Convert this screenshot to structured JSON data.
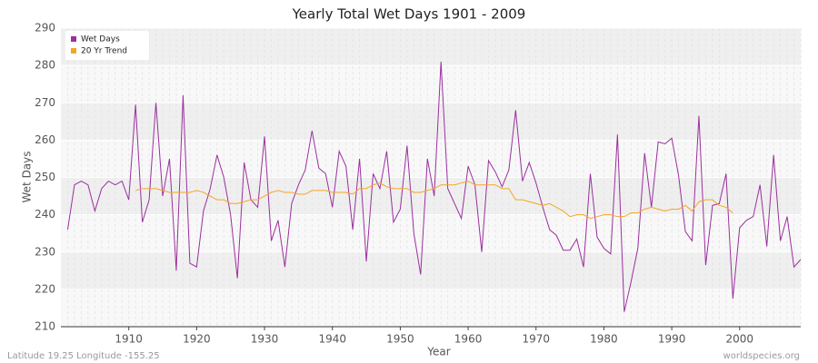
{
  "chart_data": {
    "type": "line",
    "title": "Yearly Total Wet Days 1901 - 2009",
    "x_label": "Year",
    "y_label": "Wet Days",
    "footer_left": "Latitude 19.25 Longitude -155.25",
    "footer_right": "worldspecies.org",
    "x": [
      1901,
      1902,
      1903,
      1904,
      1905,
      1906,
      1907,
      1908,
      1909,
      1910,
      1911,
      1912,
      1913,
      1914,
      1915,
      1916,
      1917,
      1918,
      1919,
      1920,
      1921,
      1922,
      1923,
      1924,
      1925,
      1926,
      1927,
      1928,
      1929,
      1930,
      1931,
      1932,
      1933,
      1934,
      1935,
      1936,
      1937,
      1938,
      1939,
      1940,
      1941,
      1942,
      1943,
      1944,
      1945,
      1946,
      1947,
      1948,
      1949,
      1950,
      1951,
      1952,
      1953,
      1954,
      1955,
      1956,
      1957,
      1958,
      1959,
      1960,
      1961,
      1962,
      1963,
      1964,
      1965,
      1966,
      1967,
      1968,
      1969,
      1970,
      1971,
      1972,
      1973,
      1974,
      1975,
      1976,
      1977,
      1978,
      1979,
      1980,
      1981,
      1982,
      1983,
      1984,
      1985,
      1986,
      1987,
      1988,
      1989,
      1990,
      1991,
      1992,
      1993,
      1994,
      1995,
      1996,
      1997,
      1998,
      1999,
      2000,
      2001,
      2002,
      2003,
      2004,
      2005,
      2006,
      2007,
      2008,
      2009
    ],
    "series": [
      {
        "name": "Wet Days",
        "color": "#9b2f9e",
        "values": [
          236,
          248,
          249,
          248,
          241,
          247,
          249,
          248,
          249,
          244,
          269.5,
          238,
          244,
          270,
          245,
          255,
          225,
          272,
          227,
          226,
          241,
          247,
          256,
          250,
          240,
          223,
          254,
          244,
          242,
          261,
          233,
          238.5,
          226,
          243,
          248,
          252,
          262.5,
          252.5,
          251,
          242,
          257,
          253,
          236,
          255,
          227.5,
          251,
          247,
          257,
          238,
          241.5,
          258.5,
          235,
          224,
          255,
          245,
          281,
          247,
          243,
          239,
          253,
          248,
          230,
          254.5,
          251.5,
          247.5,
          252,
          268,
          249,
          254,
          248.5,
          242,
          236,
          234.5,
          230.5,
          230.5,
          233.5,
          226,
          251,
          234,
          231,
          229.5,
          261.5,
          214,
          222,
          231,
          256.5,
          242,
          259.5,
          259,
          260.5,
          250.5,
          235.5,
          233,
          266.5,
          226.5,
          242.5,
          243,
          251,
          217.5,
          236.5,
          238.5,
          239.5,
          248,
          231.5,
          256,
          233,
          239.5,
          226,
          228
        ]
      },
      {
        "name": "20 Yr Trend",
        "color": "#f5a623",
        "values": [
          null,
          null,
          null,
          null,
          null,
          null,
          null,
          null,
          null,
          null,
          246.5,
          247,
          247,
          247,
          246.5,
          246,
          246,
          246,
          246,
          246.5,
          246,
          245,
          244,
          244,
          243,
          243,
          243.5,
          244,
          244,
          245,
          246,
          246.5,
          246,
          246,
          245.5,
          245.5,
          246.5,
          246.5,
          246.5,
          246,
          246,
          246,
          245.5,
          247,
          247,
          248,
          248.5,
          247.5,
          247,
          247,
          247,
          246,
          246,
          246.5,
          247,
          248,
          248,
          248,
          248.5,
          249,
          248,
          248,
          248,
          248,
          247,
          247,
          244,
          244,
          243.5,
          243,
          242.5,
          243,
          242,
          241,
          239.5,
          240,
          240,
          239,
          239.5,
          240,
          240,
          239.5,
          239.5,
          240.5,
          240.5,
          241.5,
          242,
          241.5,
          241,
          241.5,
          241.5,
          242.5,
          241,
          243.5,
          244,
          244,
          242.5,
          242,
          240.5,
          null,
          null,
          null,
          null,
          null,
          null,
          null,
          null,
          null,
          null
        ]
      }
    ],
    "xlim": [
      1900,
      2009
    ],
    "xticks": [
      1910,
      1920,
      1930,
      1940,
      1950,
      1960,
      1970,
      1980,
      1990,
      2000
    ],
    "ylim": [
      210,
      290
    ],
    "yticks": [
      210,
      220,
      230,
      240,
      250,
      260,
      270,
      280,
      290
    ],
    "grid": true,
    "legend": "top-left"
  }
}
